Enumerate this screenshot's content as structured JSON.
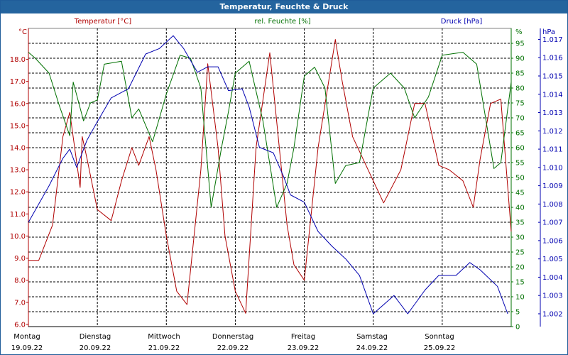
{
  "window": {
    "title": "Temperatur, Feuchte & Druck"
  },
  "colors": {
    "temperature": "#b00000",
    "humidity": "#007000",
    "pressure": "#0000b0",
    "grid": "#000000",
    "titlebar": "#24649e"
  },
  "chart_data": {
    "type": "line",
    "title": "Temperatur, Feuchte & Druck",
    "grid": true,
    "x_start": "19.09.22 00:00",
    "x_end": "26.09.22 00:00",
    "x_ticks": [
      {
        "day": "Montag",
        "date": "19.09.22"
      },
      {
        "day": "Dienstag",
        "date": "20.09.22"
      },
      {
        "day": "Mittwoch",
        "date": "21.09.22"
      },
      {
        "day": "Donnerstag",
        "date": "22.09.22"
      },
      {
        "day": "Freitag",
        "date": "23.09.22"
      },
      {
        "day": "Samstag",
        "date": "24.09.22"
      },
      {
        "day": "Sonntag",
        "date": "25.09.22"
      }
    ],
    "axes": {
      "temperature": {
        "label": "Temperatur [°C]",
        "unit": "°C",
        "range": [
          5.9,
          19.4
        ],
        "ticks": [
          "6.0",
          "7.0",
          "8.0",
          "9.0",
          "10.0",
          "11.0",
          "12.0",
          "13.0",
          "14.0",
          "15.0",
          "16.0",
          "17.0",
          "18.0"
        ]
      },
      "humidity": {
        "label": "rel. Feuchte [%]",
        "unit": "%",
        "range": [
          0,
          100
        ],
        "ticks": [
          "0",
          "5",
          "10",
          "15",
          "20",
          "25",
          "30",
          "35",
          "40",
          "45",
          "50",
          "55",
          "60",
          "65",
          "70",
          "75",
          "80",
          "85",
          "90",
          "95"
        ]
      },
      "pressure": {
        "label": "Druck [hPa]",
        "unit": "hPa",
        "range": [
          1.0013,
          1.0176
        ],
        "ticks": [
          "1.002",
          "1.003",
          "1.004",
          "1.005",
          "1.006",
          "1.007",
          "1.008",
          "1.009",
          "1.010",
          "1.011",
          "1.012",
          "1.013",
          "1.014",
          "1.015",
          "1.016",
          "1.017"
        ]
      }
    },
    "series": [
      {
        "name": "Temperatur [°C]",
        "axis": "temperature",
        "x_days": [
          0,
          0.15,
          0.35,
          0.5,
          0.6,
          0.75,
          0.78,
          0.85,
          1,
          1.2,
          1.35,
          1.5,
          1.6,
          1.75,
          1.85,
          2,
          2.15,
          2.3,
          2.5,
          2.6,
          2.75,
          2.85,
          3,
          3.15,
          3.3,
          3.5,
          3.75,
          3.85,
          4,
          4.2,
          4.45,
          4.55,
          4.7,
          5,
          5.15,
          5.4,
          5.6,
          5.75,
          5.95,
          6.1,
          6.3,
          6.45,
          6.55,
          6.7,
          6.85,
          7
        ],
        "values": [
          8.9,
          8.9,
          10.5,
          14.5,
          15.6,
          12.2,
          14.5,
          13.5,
          11.2,
          10.7,
          12.5,
          14,
          13.2,
          14.5,
          13,
          10,
          7.5,
          6.9,
          13,
          17.8,
          14,
          10,
          7.5,
          6.5,
          14,
          18.3,
          10.5,
          8.7,
          8,
          14,
          18.9,
          17,
          14.5,
          12.5,
          11.5,
          13,
          16,
          16,
          13.2,
          13,
          12.5,
          11.3,
          13.5,
          16,
          16.2,
          10.2
        ]
      },
      {
        "name": "rel. Feuchte [%]",
        "axis": "humidity",
        "x_days": [
          0,
          0.1,
          0.3,
          0.45,
          0.6,
          0.65,
          0.8,
          0.9,
          1,
          1.1,
          1.35,
          1.5,
          1.6,
          1.8,
          2,
          2.2,
          2.35,
          2.5,
          2.65,
          2.8,
          2.9,
          3,
          3.2,
          3.4,
          3.6,
          3.75,
          3.85,
          4,
          4.15,
          4.3,
          4.45,
          4.6,
          4.8,
          5,
          5.25,
          5.45,
          5.6,
          5.8,
          6,
          6.3,
          6.5,
          6.75,
          6.85,
          7
        ],
        "values": [
          92,
          90,
          85,
          74,
          64,
          82,
          69,
          75,
          76,
          88,
          89,
          70,
          73,
          62,
          78,
          91,
          90,
          80,
          40,
          60,
          72,
          85,
          89,
          69,
          40,
          48,
          60,
          84,
          87,
          80,
          48,
          54,
          55,
          80,
          85,
          80,
          70,
          77,
          91,
          92,
          88,
          53,
          55,
          82
        ]
      },
      {
        "name": "Druck [hPa]",
        "axis": "pressure",
        "x_days": [
          0,
          0.3,
          0.5,
          0.6,
          0.7,
          0.85,
          1,
          1.2,
          1.45,
          1.7,
          1.9,
          2.1,
          2.25,
          2.45,
          2.6,
          2.75,
          2.9,
          3.1,
          3.2,
          3.35,
          3.55,
          3.7,
          3.8,
          4,
          4.2,
          4.4,
          4.6,
          4.8,
          5,
          5.3,
          5.5,
          5.75,
          5.95,
          6.2,
          6.4,
          6.55,
          6.8,
          6.95
        ],
        "values": [
          1.007,
          1.009,
          1.0105,
          1.011,
          1.01,
          1.0115,
          1.0125,
          1.0138,
          1.0143,
          1.0162,
          1.0165,
          1.0172,
          1.0165,
          1.0152,
          1.0155,
          1.0155,
          1.0142,
          1.0143,
          1.0133,
          1.0111,
          1.0108,
          1.0095,
          1.0085,
          1.0081,
          1.0065,
          1.0057,
          1.005,
          1.0041,
          1.002,
          1.003,
          1.002,
          1.0033,
          1.0041,
          1.0041,
          1.0048,
          1.0044,
          1.0035,
          1.002
        ]
      }
    ]
  }
}
